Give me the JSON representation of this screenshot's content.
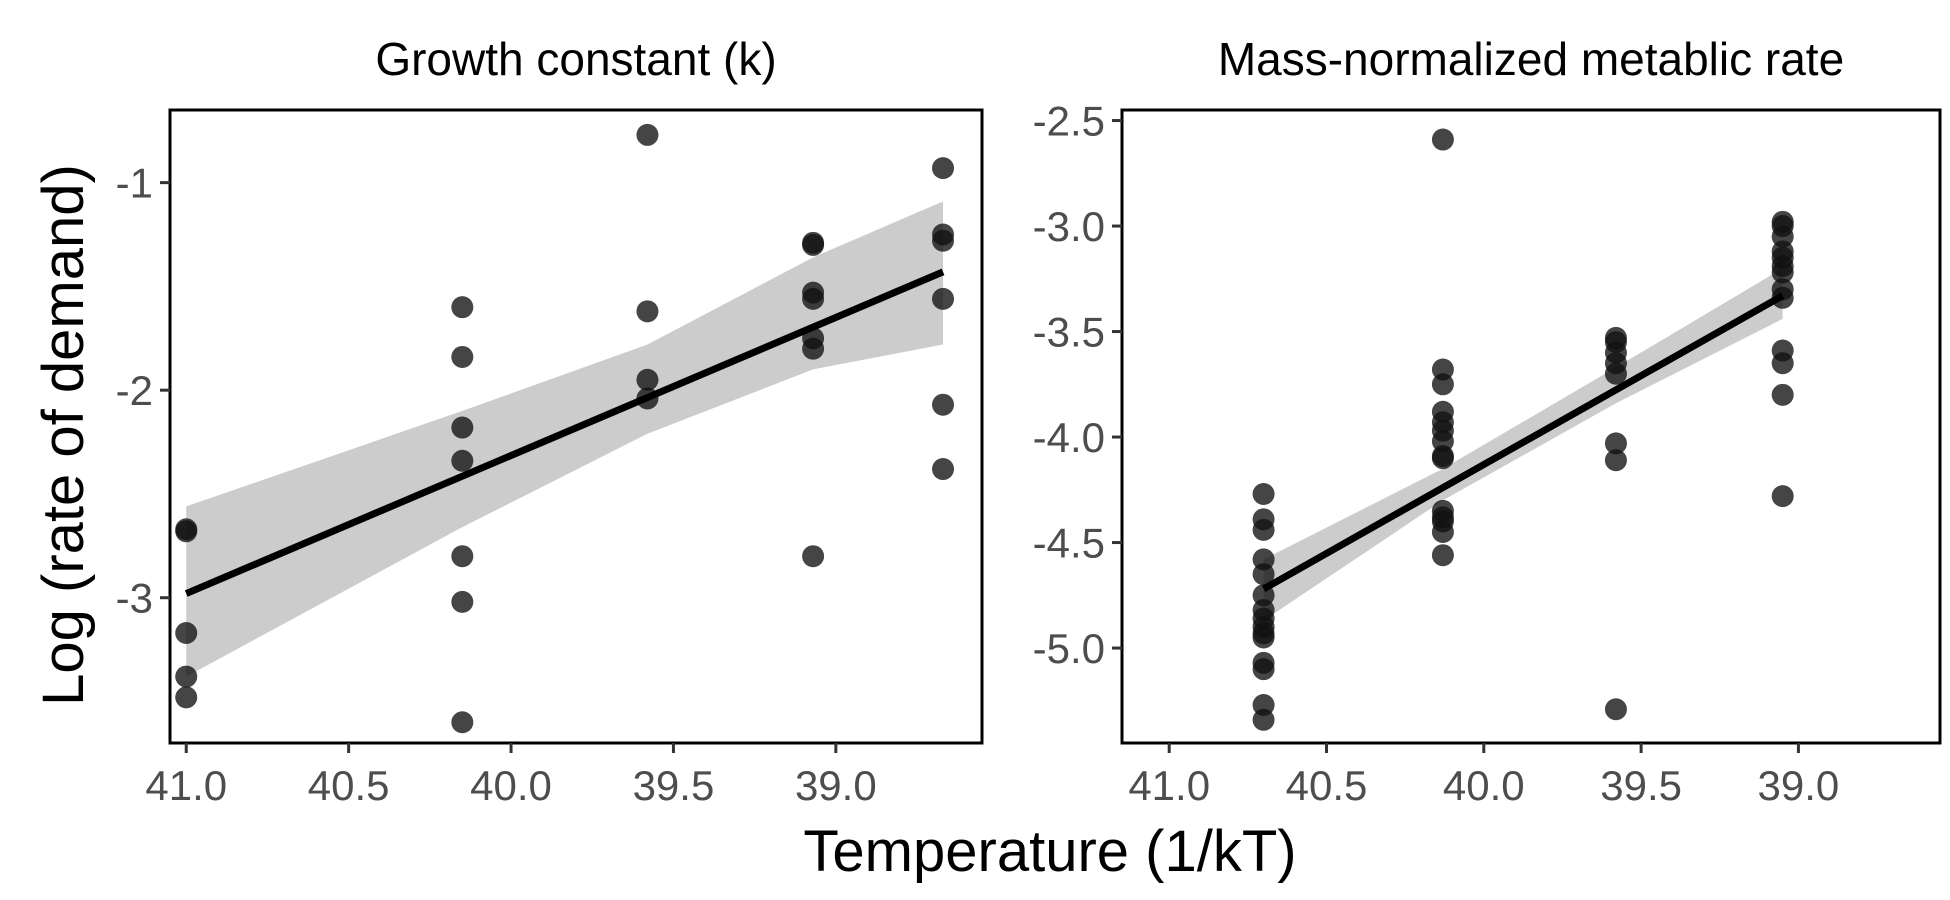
{
  "figure": {
    "ylabel": "Log (rate of demand)",
    "xlabel": "Temperature (1/kT)"
  },
  "chart_data": [
    {
      "type": "scatter",
      "title": "Growth constant (k)",
      "x_reversed": true,
      "xlim": [
        41.05,
        38.55
      ],
      "ylim": [
        -3.7,
        -0.65
      ],
      "x_ticks": [
        41.0,
        40.5,
        40.0,
        39.5,
        39.0
      ],
      "x_tick_labels": [
        "41.0",
        "40.5",
        "40.0",
        "39.5",
        "39.0"
      ],
      "y_ticks": [
        -1,
        -2,
        -3
      ],
      "y_tick_labels": [
        "-1",
        "-2",
        "-3"
      ],
      "points": [
        [
          41.0,
          -2.68
        ],
        [
          41.0,
          -2.67
        ],
        [
          41.0,
          -3.17
        ],
        [
          41.0,
          -3.38
        ],
        [
          41.0,
          -3.48
        ],
        [
          40.15,
          -1.6
        ],
        [
          40.15,
          -1.84
        ],
        [
          40.15,
          -2.18
        ],
        [
          40.15,
          -2.34
        ],
        [
          40.15,
          -2.8
        ],
        [
          40.15,
          -3.02
        ],
        [
          40.15,
          -3.6
        ],
        [
          39.58,
          -0.77
        ],
        [
          39.58,
          -1.62
        ],
        [
          39.58,
          -1.95
        ],
        [
          39.58,
          -2.04
        ],
        [
          39.07,
          -1.29
        ],
        [
          39.07,
          -1.3
        ],
        [
          39.07,
          -1.53
        ],
        [
          39.07,
          -1.56
        ],
        [
          39.07,
          -1.75
        ],
        [
          39.07,
          -1.8
        ],
        [
          39.07,
          -2.8
        ],
        [
          38.67,
          -0.93
        ],
        [
          38.67,
          -1.25
        ],
        [
          38.67,
          -1.28
        ],
        [
          38.67,
          -1.56
        ],
        [
          38.67,
          -2.07
        ],
        [
          38.67,
          -2.38
        ]
      ],
      "fit": {
        "x": [
          41.0,
          38.67
        ],
        "y": [
          -2.98,
          -1.43
        ]
      },
      "ci": {
        "x": [
          41.0,
          40.15,
          39.58,
          39.07,
          38.67
        ],
        "lower": [
          -3.38,
          -2.66,
          -2.21,
          -1.9,
          -1.78
        ],
        "upper": [
          -2.56,
          -2.1,
          -1.78,
          -1.36,
          -1.09
        ]
      },
      "grid": false
    },
    {
      "type": "scatter",
      "title": "Mass-normalized metablic rate",
      "x_reversed": true,
      "xlim": [
        41.15,
        38.55
      ],
      "ylim": [
        -5.45,
        -2.45
      ],
      "x_ticks": [
        41.0,
        40.5,
        40.0,
        39.5,
        39.0
      ],
      "x_tick_labels": [
        "41.0",
        "40.5",
        "40.0",
        "39.5",
        "39.0"
      ],
      "y_ticks": [
        -2.5,
        -3.0,
        -3.5,
        -4.0,
        -4.5,
        -5.0
      ],
      "y_tick_labels": [
        "-2.5",
        "-3.0",
        "-3.5",
        "-4.0",
        "-4.5",
        "-5.0"
      ],
      "points": [
        [
          40.7,
          -4.27
        ],
        [
          40.7,
          -4.39
        ],
        [
          40.7,
          -4.44
        ],
        [
          40.7,
          -4.58
        ],
        [
          40.7,
          -4.65
        ],
        [
          40.7,
          -4.75
        ],
        [
          40.7,
          -4.82
        ],
        [
          40.7,
          -4.86
        ],
        [
          40.7,
          -4.9
        ],
        [
          40.7,
          -4.93
        ],
        [
          40.7,
          -4.95
        ],
        [
          40.7,
          -5.07
        ],
        [
          40.7,
          -5.1
        ],
        [
          40.7,
          -5.27
        ],
        [
          40.7,
          -5.34
        ],
        [
          40.13,
          -2.59
        ],
        [
          40.13,
          -3.68
        ],
        [
          40.13,
          -3.75
        ],
        [
          40.13,
          -3.88
        ],
        [
          40.13,
          -3.93
        ],
        [
          40.13,
          -3.97
        ],
        [
          40.13,
          -4.02
        ],
        [
          40.13,
          -4.09
        ],
        [
          40.13,
          -4.1
        ],
        [
          40.13,
          -4.35
        ],
        [
          40.13,
          -4.38
        ],
        [
          40.13,
          -4.4
        ],
        [
          40.13,
          -4.45
        ],
        [
          40.13,
          -4.56
        ],
        [
          39.58,
          -3.53
        ],
        [
          39.58,
          -3.55
        ],
        [
          39.58,
          -3.6
        ],
        [
          39.58,
          -3.65
        ],
        [
          39.58,
          -3.7
        ],
        [
          39.58,
          -4.03
        ],
        [
          39.58,
          -4.11
        ],
        [
          39.58,
          -5.29
        ],
        [
          39.05,
          -2.98
        ],
        [
          39.05,
          -3.0
        ],
        [
          39.05,
          -3.05
        ],
        [
          39.05,
          -3.12
        ],
        [
          39.05,
          -3.15
        ],
        [
          39.05,
          -3.19
        ],
        [
          39.05,
          -3.22
        ],
        [
          39.05,
          -3.3
        ],
        [
          39.05,
          -3.34
        ],
        [
          39.05,
          -3.59
        ],
        [
          39.05,
          -3.65
        ],
        [
          39.05,
          -3.8
        ],
        [
          39.05,
          -4.28
        ]
      ],
      "fit": {
        "x": [
          40.7,
          39.05
        ],
        "y": [
          -4.72,
          -3.33
        ]
      },
      "ci": {
        "x": [
          40.7,
          40.13,
          39.58,
          39.05
        ],
        "lower": [
          -4.87,
          -4.3,
          -3.84,
          -3.44
        ],
        "upper": [
          -4.58,
          -4.15,
          -3.67,
          -3.2
        ]
      },
      "grid": false
    }
  ]
}
